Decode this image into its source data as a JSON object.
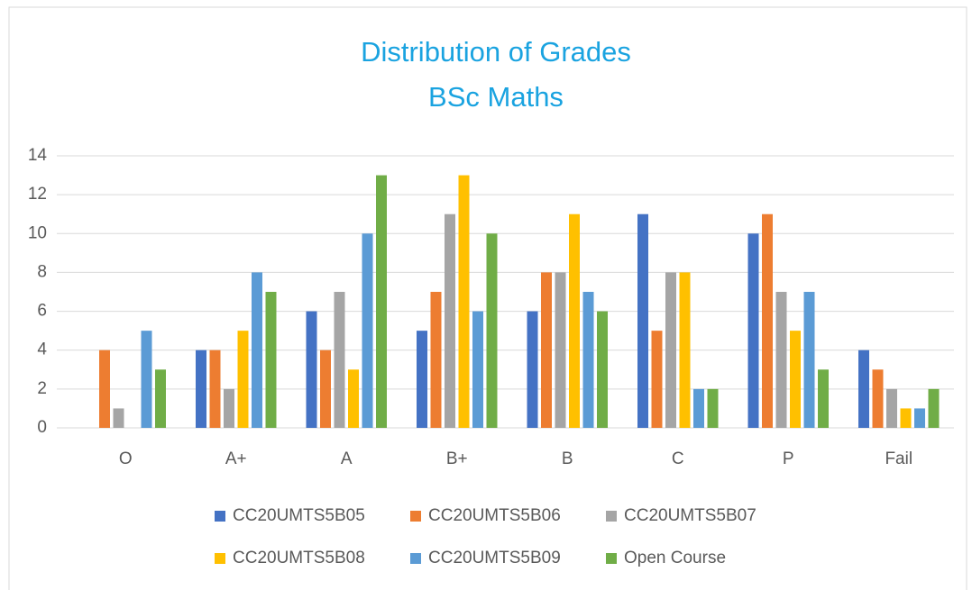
{
  "chart_data": {
    "type": "bar",
    "title": "Distribution of Grades",
    "subtitle": "BSc Maths",
    "categories": [
      "O",
      "A+",
      "A",
      "B+",
      "B",
      "C",
      "P",
      "Fail"
    ],
    "series": [
      {
        "name": "CC20UMTS5B05",
        "color": "#4472c4",
        "values": [
          0,
          4,
          6,
          5,
          6,
          11,
          10,
          4
        ]
      },
      {
        "name": "CC20UMTS5B06",
        "color": "#ed7d31",
        "values": [
          4,
          4,
          4,
          7,
          8,
          5,
          11,
          3
        ]
      },
      {
        "name": "CC20UMTS5B07",
        "color": "#a5a5a5",
        "values": [
          1,
          2,
          7,
          11,
          8,
          8,
          7,
          2
        ]
      },
      {
        "name": "CC20UMTS5B08",
        "color": "#ffc000",
        "values": [
          0,
          5,
          3,
          13,
          11,
          8,
          5,
          1
        ]
      },
      {
        "name": "CC20UMTS5B09",
        "color": "#5b9bd5",
        "values": [
          5,
          8,
          10,
          6,
          7,
          2,
          7,
          1
        ]
      },
      {
        "name": "Open Course",
        "color": "#70ad47",
        "values": [
          3,
          7,
          13,
          10,
          6,
          2,
          3,
          2
        ]
      }
    ],
    "ylim": [
      0,
      14
    ],
    "yticks": [
      0,
      2,
      4,
      6,
      8,
      10,
      12,
      14
    ],
    "grid": true,
    "legend": "bottom"
  }
}
